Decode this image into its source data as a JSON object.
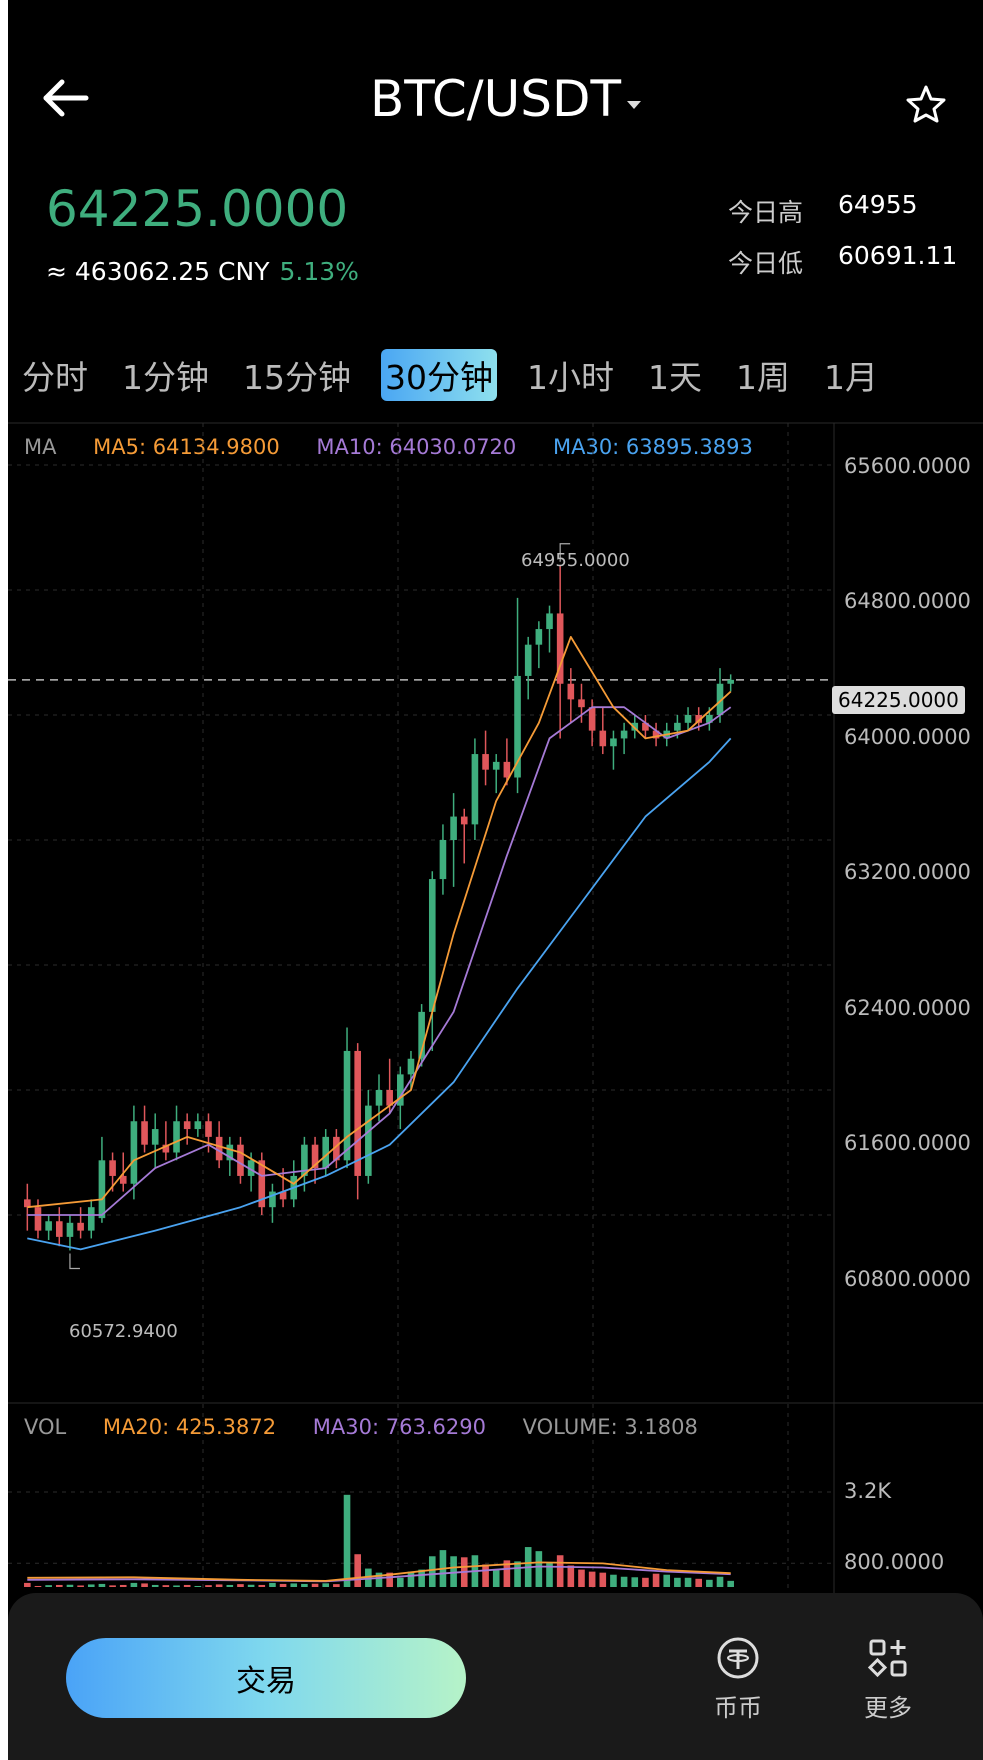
{
  "header": {
    "title": "BTC/USDT",
    "back_icon": "arrow-left-icon",
    "dropdown_icon": "caret-down-icon",
    "favorite_icon": "star-outline-icon"
  },
  "ticker": {
    "last_price": "64225.0000",
    "cny_value": "≈ 463062.25 CNY",
    "change_pct": "5.13%",
    "high_label": "今日高",
    "high_value": "64955",
    "low_label": "今日低",
    "low_value": "60691.11"
  },
  "colors": {
    "up": "#3fae7e",
    "down": "#e0575b",
    "ma5": "#f59b37",
    "ma10": "#a57ad6",
    "ma30": "#4aa3f0"
  },
  "timeframes": [
    {
      "label": "分时",
      "active": false
    },
    {
      "label": "1分钟",
      "active": false
    },
    {
      "label": "15分钟",
      "active": false
    },
    {
      "label": "30分钟",
      "active": true
    },
    {
      "label": "1小时",
      "active": false
    },
    {
      "label": "1天",
      "active": false
    },
    {
      "label": "1周",
      "active": false
    },
    {
      "label": "1月",
      "active": false
    }
  ],
  "main_chart": {
    "legend": {
      "title": "MA",
      "ma5": "MA5: 64134.9800",
      "ma10": "MA10: 64030.0720",
      "ma30": "MA30: 63895.3893"
    },
    "y_ticks": [
      "65600.0000",
      "64800.0000",
      "64000.0000",
      "63200.0000",
      "62400.0000",
      "61600.0000",
      "60800.0000"
    ],
    "current_price_tag": "64225.0000",
    "max_label": "64955.0000",
    "min_label": "60572.9400"
  },
  "volume_chart": {
    "legend": {
      "title": "VOL",
      "ma20": "MA20: 425.3872",
      "ma30": "MA30: 763.6290",
      "volume": "VOLUME: 3.1808"
    },
    "y_ticks": [
      "3.2K",
      "800.0000"
    ]
  },
  "chart_data": {
    "type": "candlestick",
    "interval": "30分钟",
    "ylim": [
      60200,
      65800
    ],
    "candles": [
      {
        "o": 60900,
        "h": 61000,
        "l": 60700,
        "c": 60850
      },
      {
        "o": 60850,
        "h": 60900,
        "l": 60650,
        "c": 60700
      },
      {
        "o": 60700,
        "h": 60800,
        "l": 60640,
        "c": 60760
      },
      {
        "o": 60760,
        "h": 60850,
        "l": 60600,
        "c": 60660
      },
      {
        "o": 60660,
        "h": 60800,
        "l": 60573,
        "c": 60750
      },
      {
        "o": 60750,
        "h": 60850,
        "l": 60650,
        "c": 60700
      },
      {
        "o": 60700,
        "h": 60900,
        "l": 60650,
        "c": 60850
      },
      {
        "o": 60780,
        "h": 61300,
        "l": 60750,
        "c": 61150
      },
      {
        "o": 61150,
        "h": 61200,
        "l": 60950,
        "c": 61050
      },
      {
        "o": 61050,
        "h": 61200,
        "l": 60950,
        "c": 61000
      },
      {
        "o": 61000,
        "h": 61500,
        "l": 60900,
        "c": 61400
      },
      {
        "o": 61400,
        "h": 61500,
        "l": 61200,
        "c": 61250
      },
      {
        "o": 61250,
        "h": 61450,
        "l": 61100,
        "c": 61350
      },
      {
        "o": 61250,
        "h": 61400,
        "l": 61150,
        "c": 61200
      },
      {
        "o": 61200,
        "h": 61500,
        "l": 61150,
        "c": 61400
      },
      {
        "o": 61400,
        "h": 61450,
        "l": 61250,
        "c": 61350
      },
      {
        "o": 61350,
        "h": 61450,
        "l": 61300,
        "c": 61400
      },
      {
        "o": 61400,
        "h": 61450,
        "l": 61200,
        "c": 61300
      },
      {
        "o": 61300,
        "h": 61400,
        "l": 61100,
        "c": 61150
      },
      {
        "o": 61150,
        "h": 61300,
        "l": 61050,
        "c": 61250
      },
      {
        "o": 61250,
        "h": 61300,
        "l": 61000,
        "c": 61050
      },
      {
        "o": 61050,
        "h": 61200,
        "l": 60950,
        "c": 61150
      },
      {
        "o": 61150,
        "h": 61200,
        "l": 60800,
        "c": 60850
      },
      {
        "o": 60850,
        "h": 61000,
        "l": 60750,
        "c": 60950
      },
      {
        "o": 60950,
        "h": 61100,
        "l": 60850,
        "c": 60900
      },
      {
        "o": 60900,
        "h": 61150,
        "l": 60850,
        "c": 61050
      },
      {
        "o": 61050,
        "h": 61300,
        "l": 60950,
        "c": 61250
      },
      {
        "o": 61250,
        "h": 61300,
        "l": 61000,
        "c": 61100
      },
      {
        "o": 61100,
        "h": 61350,
        "l": 61050,
        "c": 61300
      },
      {
        "o": 61300,
        "h": 61350,
        "l": 61100,
        "c": 61150
      },
      {
        "o": 61150,
        "h": 62000,
        "l": 61100,
        "c": 61850
      },
      {
        "o": 61850,
        "h": 61900,
        "l": 60900,
        "c": 61050
      },
      {
        "o": 61050,
        "h": 61600,
        "l": 61000,
        "c": 61500
      },
      {
        "o": 61500,
        "h": 61700,
        "l": 61400,
        "c": 61600
      },
      {
        "o": 61600,
        "h": 61800,
        "l": 61450,
        "c": 61500
      },
      {
        "o": 61500,
        "h": 61750,
        "l": 61350,
        "c": 61700
      },
      {
        "o": 61700,
        "h": 61850,
        "l": 61600,
        "c": 61800
      },
      {
        "o": 61800,
        "h": 62150,
        "l": 61750,
        "c": 62100
      },
      {
        "o": 62100,
        "h": 63000,
        "l": 61850,
        "c": 62950
      },
      {
        "o": 62950,
        "h": 63300,
        "l": 62850,
        "c": 63200
      },
      {
        "o": 63200,
        "h": 63500,
        "l": 62900,
        "c": 63350
      },
      {
        "o": 63350,
        "h": 63400,
        "l": 63050,
        "c": 63300
      },
      {
        "o": 63300,
        "h": 63850,
        "l": 63200,
        "c": 63750
      },
      {
        "o": 63750,
        "h": 63900,
        "l": 63550,
        "c": 63650
      },
      {
        "o": 63650,
        "h": 63750,
        "l": 63500,
        "c": 63700
      },
      {
        "o": 63700,
        "h": 63850,
        "l": 63550,
        "c": 63600
      },
      {
        "o": 63600,
        "h": 64750,
        "l": 63500,
        "c": 64250
      },
      {
        "o": 64250,
        "h": 64500,
        "l": 64100,
        "c": 64450
      },
      {
        "o": 64450,
        "h": 64600,
        "l": 64300,
        "c": 64550
      },
      {
        "o": 64550,
        "h": 64700,
        "l": 64400,
        "c": 64650
      },
      {
        "o": 64650,
        "h": 64955,
        "l": 63850,
        "c": 64200
      },
      {
        "o": 64200,
        "h": 64300,
        "l": 63950,
        "c": 64100
      },
      {
        "o": 64100,
        "h": 64200,
        "l": 63950,
        "c": 64050
      },
      {
        "o": 64050,
        "h": 64100,
        "l": 63800,
        "c": 63900
      },
      {
        "o": 63900,
        "h": 64050,
        "l": 63750,
        "c": 63800
      },
      {
        "o": 63800,
        "h": 63900,
        "l": 63650,
        "c": 63850
      },
      {
        "o": 63850,
        "h": 63950,
        "l": 63750,
        "c": 63900
      },
      {
        "o": 63900,
        "h": 64000,
        "l": 63850,
        "c": 63950
      },
      {
        "o": 63950,
        "h": 64000,
        "l": 63850,
        "c": 63900
      },
      {
        "o": 63900,
        "h": 63950,
        "l": 63800,
        "c": 63850
      },
      {
        "o": 63850,
        "h": 63950,
        "l": 63800,
        "c": 63900
      },
      {
        "o": 63900,
        "h": 64000,
        "l": 63850,
        "c": 63950
      },
      {
        "o": 63950,
        "h": 64050,
        "l": 63900,
        "c": 64000
      },
      {
        "o": 64000,
        "h": 64050,
        "l": 63900,
        "c": 63950
      },
      {
        "o": 63950,
        "h": 64050,
        "l": 63900,
        "c": 64000
      },
      {
        "o": 64000,
        "h": 64300,
        "l": 63950,
        "c": 64200
      },
      {
        "o": 64200,
        "h": 64260,
        "l": 64150,
        "c": 64225
      }
    ],
    "ma5": [
      [
        0,
        60850
      ],
      [
        7,
        60900
      ],
      [
        10,
        61150
      ],
      [
        15,
        61300
      ],
      [
        20,
        61200
      ],
      [
        25,
        61000
      ],
      [
        30,
        61300
      ],
      [
        36,
        61600
      ],
      [
        40,
        62600
      ],
      [
        44,
        63450
      ],
      [
        48,
        63950
      ],
      [
        51,
        64500
      ],
      [
        55,
        64050
      ],
      [
        58,
        63850
      ],
      [
        62,
        63900
      ],
      [
        66,
        64150
      ]
    ],
    "ma10": [
      [
        0,
        60800
      ],
      [
        7,
        60800
      ],
      [
        12,
        61100
      ],
      [
        17,
        61250
      ],
      [
        22,
        61050
      ],
      [
        28,
        61100
      ],
      [
        34,
        61450
      ],
      [
        40,
        62100
      ],
      [
        45,
        63100
      ],
      [
        49,
        63850
      ],
      [
        53,
        64050
      ],
      [
        56,
        64050
      ],
      [
        60,
        63850
      ],
      [
        64,
        63950
      ],
      [
        66,
        64050
      ]
    ],
    "ma30": [
      [
        0,
        60650
      ],
      [
        5,
        60580
      ],
      [
        12,
        60700
      ],
      [
        20,
        60850
      ],
      [
        28,
        61050
      ],
      [
        34,
        61250
      ],
      [
        40,
        61650
      ],
      [
        46,
        62250
      ],
      [
        52,
        62800
      ],
      [
        58,
        63350
      ],
      [
        64,
        63700
      ],
      [
        66,
        63850
      ]
    ],
    "volume": {
      "y_ticks": [
        3200,
        800
      ],
      "bars": [
        40,
        10,
        18,
        20,
        22,
        15,
        25,
        30,
        16,
        20,
        40,
        35,
        20,
        18,
        15,
        20,
        10,
        18,
        25,
        20,
        28,
        22,
        20,
        40,
        30,
        35,
        30,
        32,
        36,
        28,
        900,
        320,
        180,
        140,
        140,
        90,
        150,
        170,
        300,
        360,
        300,
        290,
        310,
        220,
        170,
        260,
        250,
        390,
        350,
        240,
        310,
        210,
        170,
        150,
        140,
        120,
        100,
        95,
        90,
        130,
        120,
        90,
        90,
        80,
        70,
        100,
        60
      ],
      "ma20": [
        [
          0,
          90
        ],
        [
          10,
          95
        ],
        [
          20,
          70
        ],
        [
          28,
          60
        ],
        [
          34,
          120
        ],
        [
          40,
          190
        ],
        [
          48,
          240
        ],
        [
          54,
          230
        ],
        [
          60,
          165
        ],
        [
          66,
          135
        ]
      ],
      "ma30": [
        [
          0,
          70
        ],
        [
          10,
          75
        ],
        [
          20,
          65
        ],
        [
          28,
          55
        ],
        [
          34,
          95
        ],
        [
          40,
          140
        ],
        [
          48,
          200
        ],
        [
          54,
          190
        ],
        [
          60,
          150
        ],
        [
          66,
          125
        ]
      ]
    }
  },
  "bottom_nav": {
    "trade_label": "交易",
    "coin_icon": "tether-coin-icon",
    "coin_label": "币币",
    "more_icon": "grid-more-icon",
    "more_label": "更多"
  }
}
